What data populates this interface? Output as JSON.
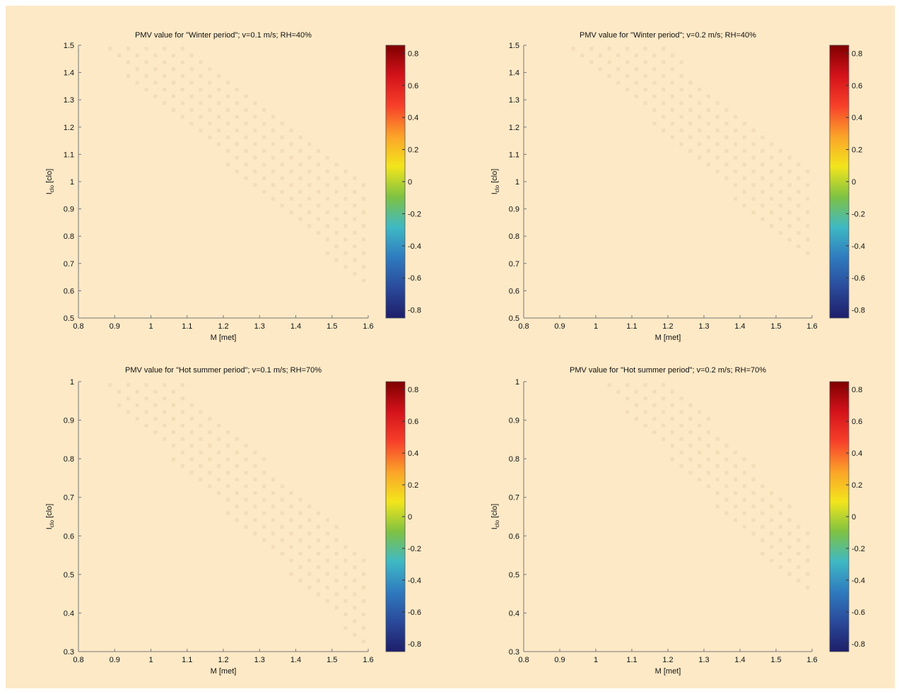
{
  "figure": {
    "background": "#fde9c6"
  },
  "colorbar": {
    "stops": [
      "#7f0000",
      "#d4121a",
      "#f7402a",
      "#fba329",
      "#f3e51c",
      "#7fc242",
      "#3fb9c4",
      "#2f7bbf",
      "#2a4a9a",
      "#1e1e6a"
    ],
    "ticks": [
      "0.8",
      "0.6",
      "0.4",
      "0.2",
      "0",
      "-0.2",
      "-0.4",
      "-0.6",
      "-0.8"
    ]
  },
  "chart_data": [
    {
      "type": "heatmap",
      "title": "PMV value for \"Winter period\"; v=0.1 m/s; RH=40%",
      "xlabel": "M [met]",
      "ylabel": "I",
      "ylabel_sub": "clo",
      "ylabel_unit": "[clo]",
      "xlim": [
        0.8,
        1.6
      ],
      "ylim": [
        0.5,
        1.5
      ],
      "xticks": [
        "0.8",
        "0.9",
        "1",
        "1.1",
        "1.2",
        "1.3",
        "1.4",
        "1.5",
        "1.6"
      ],
      "yticks": [
        "0.5",
        "0.6",
        "0.7",
        "0.8",
        "0.9",
        "1",
        "1.1",
        "1.2",
        "1.3",
        "1.4",
        "1.5"
      ],
      "clim": [
        -0.85,
        0.85
      ],
      "band": {
        "low": [
          [
            0.84,
            1.5
          ],
          [
            1.6,
            0.6
          ]
        ],
        "high": [
          [
            1.08,
            1.5
          ],
          [
            1.6,
            0.98
          ]
        ]
      }
    },
    {
      "type": "heatmap",
      "title": "PMV value for \"Winter period\"; v=0.2 m/s; RH=40%",
      "xlabel": "M [met]",
      "ylabel": "I",
      "ylabel_sub": "clo",
      "ylabel_unit": "[clo]",
      "xlim": [
        0.8,
        1.6
      ],
      "ylim": [
        0.5,
        1.5
      ],
      "xticks": [
        "0.8",
        "0.9",
        "1",
        "1.1",
        "1.2",
        "1.3",
        "1.4",
        "1.5",
        "1.6"
      ],
      "yticks": [
        "0.5",
        "0.6",
        "0.7",
        "0.8",
        "0.9",
        "1",
        "1.1",
        "1.2",
        "1.3",
        "1.4",
        "1.5"
      ],
      "clim": [
        -0.85,
        0.85
      ],
      "band": {
        "low": [
          [
            0.92,
            1.5
          ],
          [
            1.6,
            0.68
          ]
        ],
        "high": [
          [
            1.18,
            1.5
          ],
          [
            1.6,
            1.05
          ]
        ]
      }
    },
    {
      "type": "heatmap",
      "title": "PMV value for \"Hot summer period\"; v=0.1 m/s; RH=70%",
      "xlabel": "M [met]",
      "ylabel": "I",
      "ylabel_sub": "clo",
      "ylabel_unit": "[clo]",
      "xlim": [
        0.8,
        1.6
      ],
      "ylim": [
        0.3,
        1.0
      ],
      "xticks": [
        "0.8",
        "0.9",
        "1",
        "1.1",
        "1.2",
        "1.3",
        "1.4",
        "1.5",
        "1.6"
      ],
      "yticks": [
        "0.3",
        "0.4",
        "0.5",
        "0.6",
        "0.7",
        "0.8",
        "0.9",
        "1"
      ],
      "clim": [
        -0.85,
        0.85
      ],
      "band": {
        "low": [
          [
            0.84,
            1.0
          ],
          [
            1.6,
            0.3
          ]
        ],
        "high": [
          [
            1.08,
            1.0
          ],
          [
            1.6,
            0.55
          ]
        ]
      }
    },
    {
      "type": "heatmap",
      "title": "PMV value for \"Hot summer period\"; v=0.2 m/s; RH=70%",
      "xlabel": "M [met]",
      "ylabel": "I",
      "ylabel_sub": "clo",
      "ylabel_unit": "[clo]",
      "xlim": [
        0.8,
        1.6
      ],
      "ylim": [
        0.3,
        1.0
      ],
      "xticks": [
        "0.8",
        "0.9",
        "1",
        "1.1",
        "1.2",
        "1.3",
        "1.4",
        "1.5",
        "1.6"
      ],
      "yticks": [
        "0.3",
        "0.4",
        "0.5",
        "0.6",
        "0.7",
        "0.8",
        "0.9",
        "1"
      ],
      "clim": [
        -0.85,
        0.85
      ],
      "band": {
        "low": [
          [
            1.0,
            1.0
          ],
          [
            1.6,
            0.42
          ]
        ],
        "high": [
          [
            1.22,
            1.0
          ],
          [
            1.6,
            0.62
          ]
        ]
      }
    }
  ]
}
